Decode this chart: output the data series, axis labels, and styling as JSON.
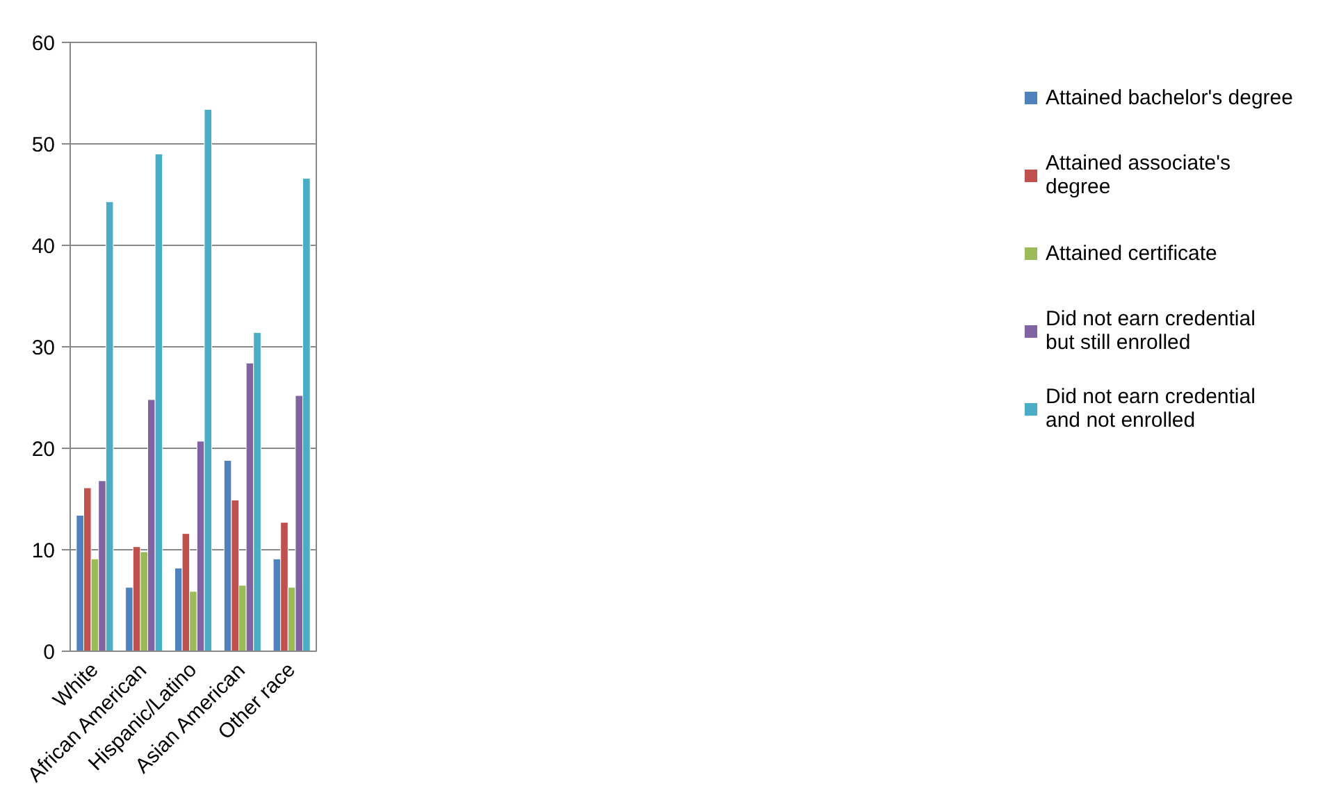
{
  "chart_data": {
    "type": "bar",
    "categories": [
      "White",
      "African American",
      "Hispanic/Latino",
      "Asian American",
      "Other race"
    ],
    "series": [
      {
        "name": "Attained bachelor's degree",
        "color": "#4f81bd",
        "values": [
          13.4,
          6.3,
          8.2,
          18.8,
          9.1
        ]
      },
      {
        "name": "Attained associate's degree",
        "color": "#c0504d",
        "values": [
          16.1,
          10.3,
          11.6,
          14.9,
          12.7
        ]
      },
      {
        "name": "Attained certificate",
        "color": "#9bbb59",
        "values": [
          9.1,
          9.8,
          5.9,
          6.5,
          6.3
        ]
      },
      {
        "name": "Did not earn credential but still enrolled",
        "color": "#8064a2",
        "values": [
          16.8,
          24.8,
          20.7,
          28.4,
          25.2
        ]
      },
      {
        "name": "Did not earn credential and not enrolled",
        "color": "#4bacc6",
        "values": [
          44.3,
          49.0,
          53.4,
          31.4,
          46.6
        ]
      }
    ],
    "ylim": [
      0,
      60
    ],
    "yticks": [
      0,
      10,
      20,
      30,
      40,
      50,
      60
    ],
    "grid": "y",
    "legend": "right"
  }
}
